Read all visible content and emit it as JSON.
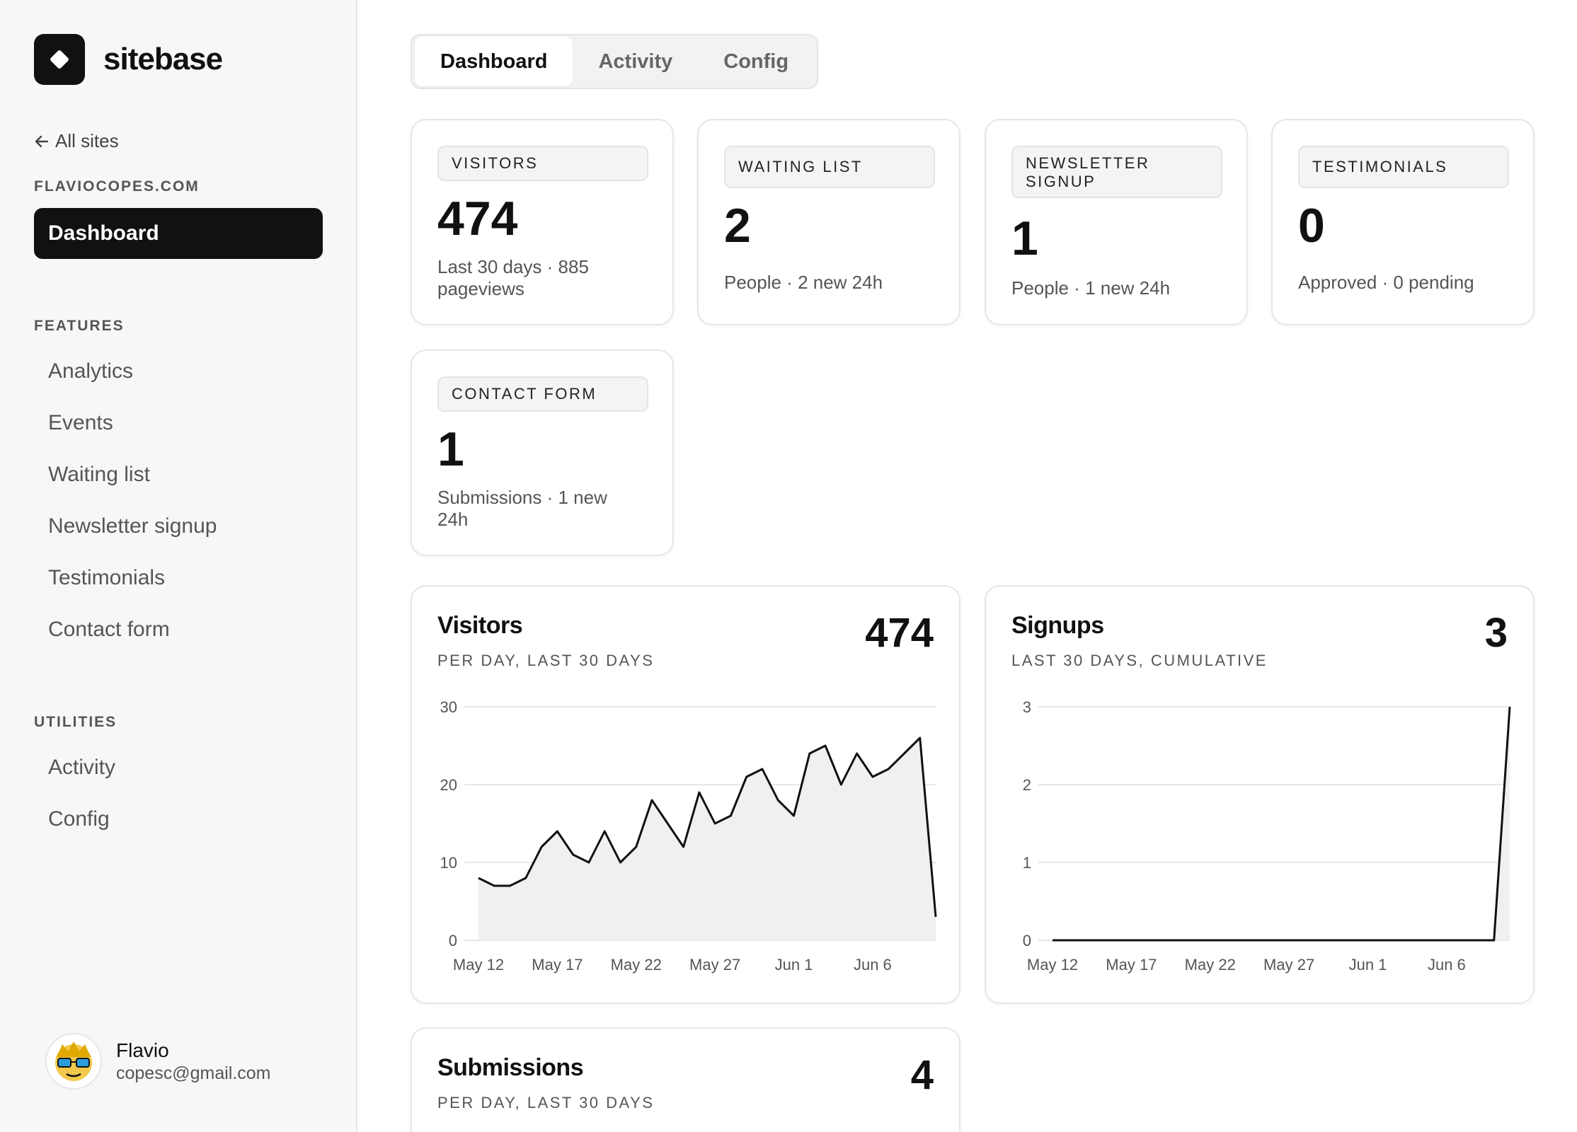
{
  "brand": {
    "name": "sitebase"
  },
  "sidebar": {
    "back_label": "All sites",
    "site": "FLAVIOCOPES.COM",
    "active": "Dashboard",
    "features_label": "FEATURES",
    "features": [
      "Analytics",
      "Events",
      "Waiting list",
      "Newsletter signup",
      "Testimonials",
      "Contact form"
    ],
    "utilities_label": "UTILITIES",
    "utilities": [
      "Activity",
      "Config"
    ]
  },
  "user": {
    "name": "Flavio",
    "email": "copesc@gmail.com"
  },
  "tabs": [
    "Dashboard",
    "Activity",
    "Config"
  ],
  "stats": [
    {
      "label": "VISITORS",
      "value": "474",
      "sub": "Last 30 days · 885 pageviews"
    },
    {
      "label": "WAITING LIST",
      "value": "2",
      "sub": "People · 2 new 24h"
    },
    {
      "label": "NEWSLETTER SIGNUP",
      "value": "1",
      "sub": "People · 1 new 24h"
    },
    {
      "label": "TESTIMONIALS",
      "value": "0",
      "sub": "Approved · 0 pending"
    },
    {
      "label": "CONTACT FORM",
      "value": "1",
      "sub": "Submissions · 1 new 24h"
    }
  ],
  "charts": {
    "visitors": {
      "title": "Visitors",
      "subtitle": "PER DAY, LAST 30 DAYS",
      "total": "474"
    },
    "signups": {
      "title": "Signups",
      "subtitle": "LAST 30 DAYS, CUMULATIVE",
      "total": "3"
    },
    "submissions": {
      "title": "Submissions",
      "subtitle": "PER DAY, LAST 30 DAYS",
      "total": "4"
    }
  },
  "chart_data": [
    {
      "type": "area",
      "title": "Visitors",
      "x": [
        "May 12",
        "May 13",
        "May 14",
        "May 15",
        "May 16",
        "May 17",
        "May 18",
        "May 19",
        "May 20",
        "May 21",
        "May 22",
        "May 23",
        "May 24",
        "May 25",
        "May 26",
        "May 27",
        "May 28",
        "May 29",
        "May 30",
        "May 31",
        "Jun 1",
        "Jun 2",
        "Jun 3",
        "Jun 4",
        "Jun 5",
        "Jun 6",
        "Jun 7",
        "Jun 8",
        "Jun 9",
        "Jun 10"
      ],
      "values": [
        8,
        7,
        7,
        8,
        12,
        14,
        11,
        10,
        14,
        10,
        12,
        18,
        15,
        12,
        19,
        15,
        16,
        21,
        22,
        18,
        16,
        24,
        25,
        20,
        24,
        21,
        22,
        24,
        26,
        3
      ],
      "xticks": [
        "May 12",
        "May 17",
        "May 22",
        "May 27",
        "Jun 1",
        "Jun 6"
      ],
      "yticks": [
        0,
        10,
        20,
        30
      ],
      "ylim": [
        0,
        30
      ],
      "grid": true
    },
    {
      "type": "area",
      "title": "Signups",
      "x": [
        "May 12",
        "May 13",
        "May 14",
        "May 15",
        "May 16",
        "May 17",
        "May 18",
        "May 19",
        "May 20",
        "May 21",
        "May 22",
        "May 23",
        "May 24",
        "May 25",
        "May 26",
        "May 27",
        "May 28",
        "May 29",
        "May 30",
        "May 31",
        "Jun 1",
        "Jun 2",
        "Jun 3",
        "Jun 4",
        "Jun 5",
        "Jun 6",
        "Jun 7",
        "Jun 8",
        "Jun 9",
        "Jun 10"
      ],
      "values": [
        0,
        0,
        0,
        0,
        0,
        0,
        0,
        0,
        0,
        0,
        0,
        0,
        0,
        0,
        0,
        0,
        0,
        0,
        0,
        0,
        0,
        0,
        0,
        0,
        0,
        0,
        0,
        0,
        0,
        3
      ],
      "xticks": [
        "May 12",
        "May 17",
        "May 22",
        "May 27",
        "Jun 1",
        "Jun 6"
      ],
      "yticks": [
        0,
        1,
        2,
        3
      ],
      "ylim": [
        0,
        3
      ],
      "grid": true
    }
  ]
}
